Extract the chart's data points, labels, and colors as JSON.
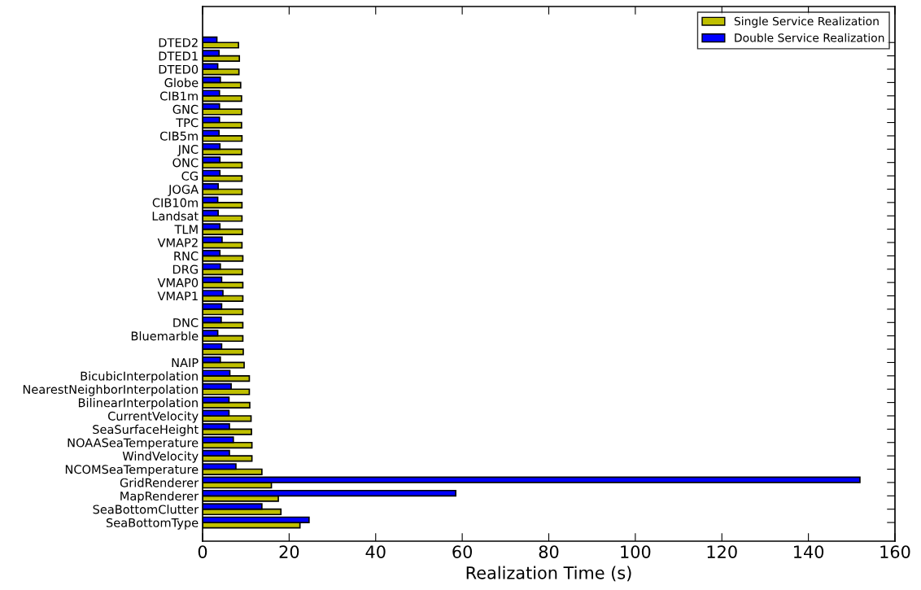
{
  "chart_data": {
    "type": "bar",
    "orientation": "horizontal",
    "xlabel": "Realization Time (s)",
    "categories": [
      "DTED2",
      "DTED1",
      "DTED0",
      "Globe",
      "CIB1m",
      "GNC",
      "TPC",
      "CIB5m",
      "JNC",
      "ONC",
      "CG",
      "JOGA",
      "CIB10m",
      "Landsat",
      "TLM",
      "VMAP2",
      "RNC",
      "DRG",
      "VMAP0",
      "VMAP1",
      null,
      "DNC",
      "Bluemarble",
      null,
      "NAIP",
      "BicubicInterpolation",
      "NearestNeighborInterpolation",
      "BilinearInterpolation",
      "CurrentVelocity",
      "SeaSurfaceHeight",
      "NOAASeaTemperature",
      "WindVelocity",
      "NCOMSeaTemperature",
      "GridRenderer",
      "MapRenderer",
      "SeaBottomClutter",
      "SeaBottomType"
    ],
    "series": [
      {
        "name": "Single Service Realization",
        "color": "#bfbf00",
        "values": [
          8.3,
          8.5,
          8.4,
          8.8,
          9.0,
          9.0,
          9.0,
          9.1,
          9.0,
          9.1,
          9.1,
          9.1,
          9.1,
          9.1,
          9.2,
          9.1,
          9.3,
          9.2,
          9.3,
          9.3,
          9.3,
          9.3,
          9.3,
          9.4,
          9.6,
          10.8,
          10.8,
          10.9,
          11.2,
          11.3,
          11.4,
          11.4,
          13.7,
          15.9,
          17.5,
          18.1,
          22.5
        ]
      },
      {
        "name": "Double Service Realization",
        "color": "#0000ff",
        "values": [
          3.3,
          3.8,
          3.5,
          4.1,
          3.9,
          3.9,
          3.9,
          3.8,
          4.0,
          4.0,
          4.0,
          3.6,
          3.5,
          3.6,
          4.0,
          4.5,
          4.0,
          4.1,
          4.4,
          4.7,
          4.4,
          4.3,
          3.5,
          4.4,
          4.1,
          6.3,
          6.6,
          6.1,
          6.1,
          6.2,
          7.1,
          6.2,
          7.7,
          151.9,
          58.5,
          13.7,
          24.6
        ]
      }
    ],
    "xlim": [
      0,
      160
    ],
    "xticks": [
      0,
      20,
      40,
      60,
      80,
      100,
      120,
      140,
      160
    ],
    "grid": false,
    "legend": "top right"
  }
}
